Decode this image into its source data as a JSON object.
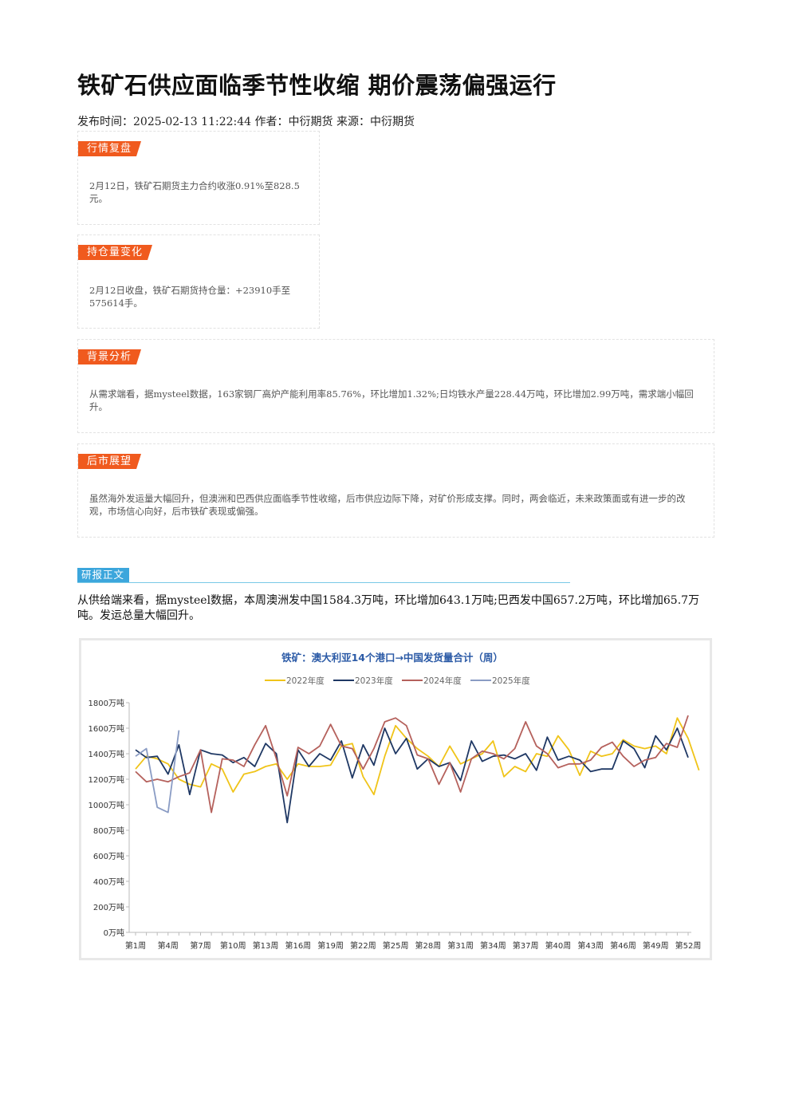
{
  "article": {
    "title": "铁矿石供应面临季节性收缩 期价震荡偏强运行",
    "meta": "发布时间：2025-02-13 11:22:44 作者：中衍期货 来源：中衍期货"
  },
  "boxes": {
    "market": {
      "tag": "行情复盘",
      "text": "2月12日，铁矿石期货主力合约收涨0.91%至828.5元。"
    },
    "position": {
      "tag": "持仓量变化",
      "text": "2月12日收盘，铁矿石期货持仓量：+23910手至575614手。"
    },
    "background": {
      "tag": "背景分析",
      "text": "从需求端看，据mysteel数据，163家钢厂高炉产能利用率85.76%，环比增加1.32%;日均铁水产量228.44万吨，环比增加2.99万吨，需求端小幅回升。"
    },
    "outlook": {
      "tag": "后市展望",
      "text": "虽然海外发运量大幅回升，但澳洲和巴西供应面临季节性收缩，后市供应边际下降，对矿价形成支撑。同时，两会临近，未来政策面或有进一步的改观，市场信心向好，后市铁矿表现或偏强。"
    }
  },
  "report": {
    "tag": "研报正文",
    "text": "从供给端来看，据mysteel数据，本周澳洲发中国1584.3万吨，环比增加643.1万吨;巴西发中国657.2万吨，环比增加65.7万吨。发运总量大幅回升。"
  },
  "chart_data": {
    "type": "line",
    "title": "铁矿：澳大利亚14个港口→中国发货量合计（周）",
    "ylim": [
      0,
      1800
    ],
    "y_ticks": [
      "0万吨",
      "200万吨",
      "400万吨",
      "600万吨",
      "800万吨",
      "1000万吨",
      "1200万吨",
      "1400万吨",
      "1600万吨",
      "1800万吨"
    ],
    "x_tick_labels": [
      "第1周",
      "第4周",
      "第7周",
      "第10周",
      "第13周",
      "第16周",
      "第19周",
      "第22周",
      "第25周",
      "第28周",
      "第31周",
      "第34周",
      "第37周",
      "第40周",
      "第43周",
      "第46周",
      "第49周",
      "第52周"
    ],
    "legend_position": "top",
    "series": [
      {
        "name": "2022年度",
        "color": "#f0c419",
        "values": [
          1280,
          1380,
          1360,
          1320,
          1200,
          1160,
          1140,
          1320,
          1280,
          1100,
          1240,
          1260,
          1300,
          1320,
          1200,
          1320,
          1300,
          1300,
          1310,
          1460,
          1480,
          1220,
          1080,
          1380,
          1620,
          1520,
          1440,
          1380,
          1300,
          1460,
          1320,
          1360,
          1400,
          1500,
          1220,
          1300,
          1260,
          1400,
          1380,
          1540,
          1430,
          1230,
          1420,
          1380,
          1400,
          1510,
          1460,
          1440,
          1460,
          1400,
          1680,
          1520,
          1270
        ]
      },
      {
        "name": "2023年度",
        "color": "#1f3864",
        "values": [
          1430,
          1370,
          1380,
          1240,
          1470,
          1080,
          1430,
          1400,
          1390,
          1330,
          1370,
          1300,
          1480,
          1400,
          860,
          1430,
          1300,
          1400,
          1350,
          1500,
          1210,
          1470,
          1310,
          1600,
          1400,
          1520,
          1280,
          1360,
          1300,
          1330,
          1190,
          1500,
          1340,
          1380,
          1390,
          1360,
          1400,
          1270,
          1530,
          1350,
          1380,
          1350,
          1260,
          1280,
          1280,
          1500,
          1440,
          1290,
          1540,
          1430,
          1600,
          1370
        ]
      },
      {
        "name": "2024年度",
        "color": "#b5615c",
        "values": [
          1260,
          1180,
          1200,
          1180,
          1220,
          1250,
          1430,
          940,
          1360,
          1350,
          1300,
          1470,
          1620,
          1360,
          1070,
          1450,
          1400,
          1460,
          1630,
          1460,
          1440,
          1280,
          1440,
          1650,
          1680,
          1620,
          1390,
          1360,
          1160,
          1330,
          1100,
          1360,
          1420,
          1400,
          1360,
          1440,
          1650,
          1460,
          1400,
          1290,
          1320,
          1320,
          1350,
          1450,
          1490,
          1380,
          1300,
          1350,
          1370,
          1480,
          1450,
          1700
        ]
      },
      {
        "name": "2025年度",
        "color": "#8a9cc4",
        "values": [
          1380,
          1440,
          980,
          940,
          1584
        ]
      }
    ]
  }
}
